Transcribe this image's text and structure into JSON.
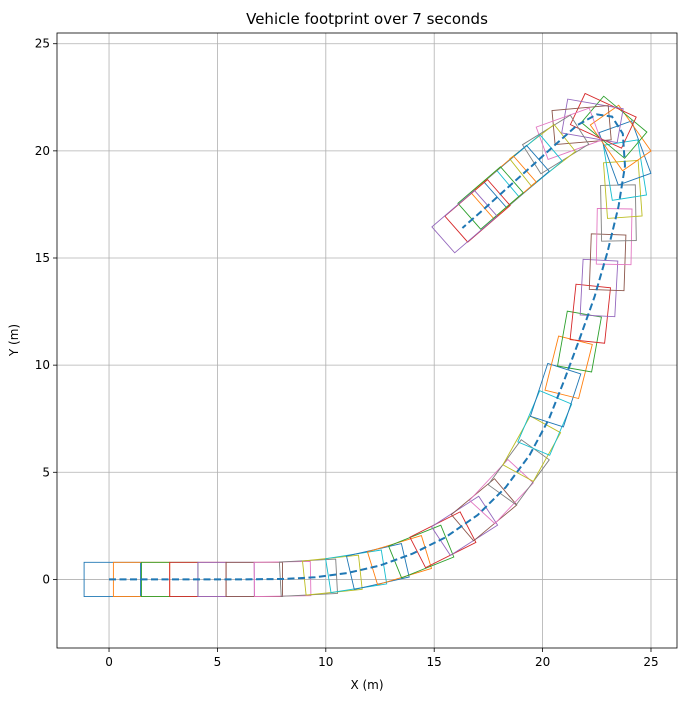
{
  "chart_data": {
    "type": "line",
    "title": "Vehicle footprint over 7 seconds",
    "xlabel": "X (m)",
    "ylabel": "Y (m)",
    "xlim": [
      -2.4,
      26.2
    ],
    "ylim": [
      -3.2,
      25.5
    ],
    "xticks": [
      0,
      5,
      10,
      15,
      20,
      25
    ],
    "yticks": [
      0,
      5,
      10,
      15,
      20,
      25
    ],
    "grid": true,
    "series": [
      {
        "kind": "trajectory",
        "style": "dashed",
        "color": "#1f77b4",
        "points": [
          [
            0,
            0
          ],
          [
            2,
            0
          ],
          [
            4,
            0
          ],
          [
            6,
            0
          ],
          [
            8,
            0.02
          ],
          [
            9.5,
            0.1
          ],
          [
            11,
            0.3
          ],
          [
            12.5,
            0.65
          ],
          [
            14,
            1.2
          ],
          [
            15.5,
            1.95
          ],
          [
            17,
            3.0
          ],
          [
            18.3,
            4.3
          ],
          [
            19.4,
            5.8
          ],
          [
            20.3,
            7.5
          ],
          [
            21.0,
            9.3
          ],
          [
            21.7,
            11.2
          ],
          [
            22.4,
            13.2
          ],
          [
            23.0,
            15.3
          ],
          [
            23.5,
            17.4
          ],
          [
            23.8,
            19.3
          ],
          [
            23.7,
            20.8
          ],
          [
            23.2,
            21.6
          ],
          [
            22.5,
            21.7
          ],
          [
            21.6,
            21.2
          ],
          [
            20.6,
            20.3
          ],
          [
            19.4,
            19.2
          ],
          [
            18.3,
            18.2
          ],
          [
            17.2,
            17.2
          ],
          [
            16.3,
            16.4
          ]
        ]
      }
    ],
    "footprints": {
      "length_m": 2.6,
      "width_m": 1.6,
      "poses": [
        [
          0.15,
          0,
          0
        ],
        [
          1.5,
          0,
          0
        ],
        [
          2.8,
          0,
          0
        ],
        [
          4.1,
          0,
          0
        ],
        [
          5.4,
          0,
          0
        ],
        [
          6.7,
          0,
          0
        ],
        [
          8.0,
          0.02,
          1
        ],
        [
          9.2,
          0.08,
          3
        ],
        [
          10.3,
          0.2,
          6
        ],
        [
          11.4,
          0.38,
          9
        ],
        [
          12.4,
          0.6,
          13
        ],
        [
          13.4,
          0.9,
          17
        ],
        [
          14.4,
          1.3,
          22
        ],
        [
          15.4,
          1.85,
          27
        ],
        [
          16.4,
          2.5,
          33
        ],
        [
          17.3,
          3.25,
          40
        ],
        [
          18.1,
          4.1,
          47
        ],
        [
          18.9,
          5.0,
          54
        ],
        [
          19.5,
          6.1,
          61
        ],
        [
          20.1,
          7.3,
          67
        ],
        [
          20.6,
          8.6,
          72
        ],
        [
          21.2,
          9.9,
          76
        ],
        [
          21.7,
          11.1,
          80
        ],
        [
          22.2,
          12.4,
          84
        ],
        [
          22.6,
          13.6,
          87
        ],
        [
          23.0,
          14.8,
          88
        ],
        [
          23.3,
          16.0,
          89
        ],
        [
          23.5,
          17.1,
          91
        ],
        [
          23.7,
          18.2,
          94
        ],
        [
          23.8,
          19.1,
          99
        ],
        [
          23.8,
          19.9,
          110
        ],
        [
          23.6,
          20.6,
          125
        ],
        [
          23.3,
          21.1,
          140
        ],
        [
          22.8,
          21.4,
          155
        ],
        [
          22.3,
          21.4,
          170
        ],
        [
          21.8,
          21.2,
          185
        ],
        [
          21.2,
          20.8,
          200
        ],
        [
          20.6,
          20.3,
          212
        ],
        [
          20.0,
          19.8,
          218
        ],
        [
          19.4,
          19.3,
          220
        ],
        [
          18.8,
          18.8,
          221
        ],
        [
          18.2,
          18.3,
          221
        ],
        [
          17.6,
          17.8,
          221
        ],
        [
          17.0,
          17.2,
          221
        ],
        [
          16.4,
          16.7,
          221
        ]
      ],
      "palette": [
        "#1f77b4",
        "#ff7f0e",
        "#2ca02c",
        "#d62728",
        "#9467bd",
        "#8c564b",
        "#e377c2",
        "#7f7f7f",
        "#bcbd22",
        "#17becf"
      ]
    }
  }
}
